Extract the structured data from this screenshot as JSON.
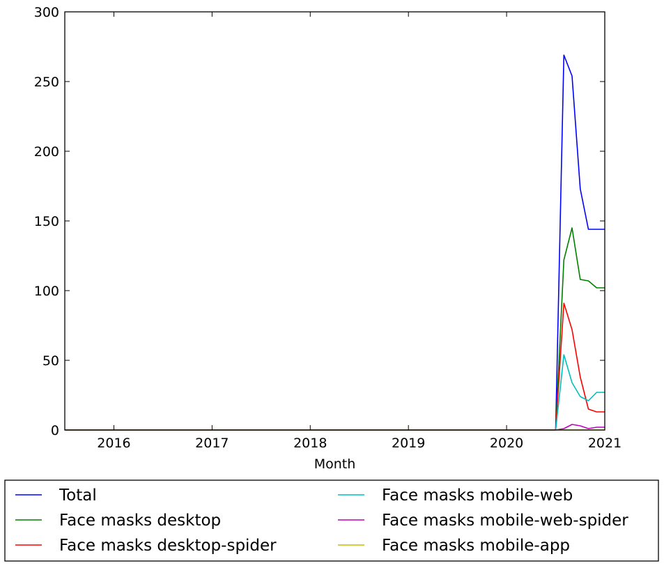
{
  "chart_data": {
    "type": "line",
    "title": "",
    "xlabel": "Month",
    "ylabel": "",
    "ylim": [
      0,
      300
    ],
    "xlim": [
      "2015-07",
      "2021-01"
    ],
    "yticks": [
      "0",
      "50",
      "100",
      "150",
      "200",
      "250",
      "300"
    ],
    "xticks": [
      {
        "label": "2016",
        "date": "2016-01"
      },
      {
        "label": "2017",
        "date": "2017-01"
      },
      {
        "label": "2018",
        "date": "2018-01"
      },
      {
        "label": "2019",
        "date": "2019-01"
      },
      {
        "label": "2020",
        "date": "2020-01"
      },
      {
        "label": "2021",
        "date": "2021-01"
      }
    ],
    "grid": false,
    "legend_position": "bottom",
    "x": [
      "2015-07",
      "2020-07",
      "2020-08",
      "2020-09",
      "2020-10",
      "2020-11",
      "2020-12",
      "2021-01"
    ],
    "series": [
      {
        "name": "Total",
        "color": "#0000ff",
        "values": [
          0,
          0,
          269,
          254,
          173,
          144,
          144,
          144
        ]
      },
      {
        "name": "Face masks desktop",
        "color": "#008000",
        "values": [
          0,
          0,
          122,
          145,
          108,
          107,
          102,
          102
        ]
      },
      {
        "name": "Face masks desktop-spider",
        "color": "#ff0000",
        "values": [
          0,
          0,
          91,
          72,
          38,
          15,
          13,
          13
        ]
      },
      {
        "name": "Face masks mobile-web",
        "color": "#00bfbf",
        "values": [
          0,
          0,
          54,
          34,
          24,
          21,
          27,
          27
        ]
      },
      {
        "name": "Face masks mobile-web-spider",
        "color": "#bf00bf",
        "values": [
          0,
          0,
          1,
          4,
          3,
          1,
          2,
          2
        ]
      },
      {
        "name": "Face masks mobile-app",
        "color": "#bfbf00",
        "values": [
          0,
          0,
          0,
          0,
          0,
          0,
          0,
          0
        ]
      }
    ]
  }
}
